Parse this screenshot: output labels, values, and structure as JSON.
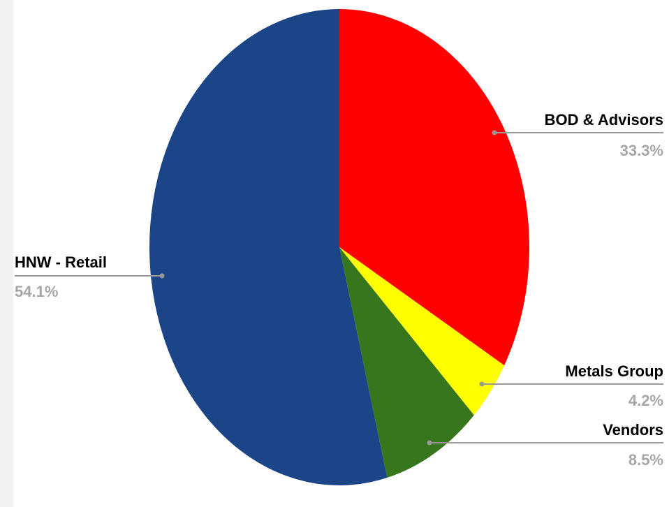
{
  "chart_data": {
    "type": "pie",
    "title": "",
    "start_angle_deg": 0,
    "direction": "clockwise",
    "slices": [
      {
        "label": "BOD & Advisors",
        "value": 33.3,
        "value_label": "33.3%",
        "color": "#ff0000",
        "label_side": "right"
      },
      {
        "label": "Metals Group",
        "value": 4.2,
        "value_label": "4.2%",
        "color": "#ffff00",
        "label_side": "right"
      },
      {
        "label": "Vendors",
        "value": 8.5,
        "value_label": "8.5%",
        "color": "#38761d",
        "label_side": "right"
      },
      {
        "label": "HNW - Retail",
        "value": 54.1,
        "value_label": "54.1%",
        "color": "#1c4587",
        "label_side": "left"
      }
    ],
    "leader_line_color": "#999999",
    "legend": "none"
  }
}
